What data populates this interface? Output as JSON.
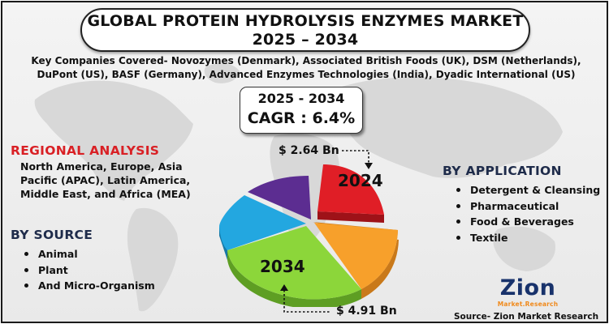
{
  "header": {
    "title_line1": "GLOBAL PROTEIN HYDROLYSIS ENZYMES MARKET",
    "title_line2": "2025 – 2034"
  },
  "companies_text": "Key Companies Covered- Novozymes (Denmark), Associated British Foods (UK), DSM (Netherlands), DuPont (US), BASF (Germany), Advanced Enzymes Technologies (India), Dyadic International (US)",
  "cagr": {
    "years": "2025 - 2034",
    "value": "CAGR : 6.4%"
  },
  "regional": {
    "heading": "REGIONAL ANALYSIS",
    "text": "North America, Europe, Asia Pacific (APAC), Latin America, Middle East, and Africa (MEA)"
  },
  "by_source": {
    "heading": "BY SOURCE",
    "items": [
      "Animal",
      "Plant",
      "And Micro-Organism"
    ]
  },
  "by_application": {
    "heading": "BY APPLICATION",
    "items": [
      "Detergent & Cleansing",
      "Pharmaceutical",
      "Food & Beverages",
      "Textile"
    ]
  },
  "market_value": {
    "year_2024": "2024",
    "value_2024": "$ 2.64 Bn",
    "year_2034": "2034",
    "value_2034": "$ 4.91 Bn"
  },
  "colors": {
    "slice_red": "#e01e26",
    "slice_orange": "#f7a02b",
    "slice_green": "#8cd63a",
    "slice_blue": "#23a7e0",
    "slice_purple": "#5c2d91",
    "regional_heading": "#d92025",
    "section_heading": "#1e2b4a",
    "logo_navy": "#18326b",
    "logo_orange": "#f08a1c"
  },
  "logo": {
    "name": "Zion",
    "tagline": "Market.Research"
  },
  "source_credit": "Source- Zion Market Research"
}
